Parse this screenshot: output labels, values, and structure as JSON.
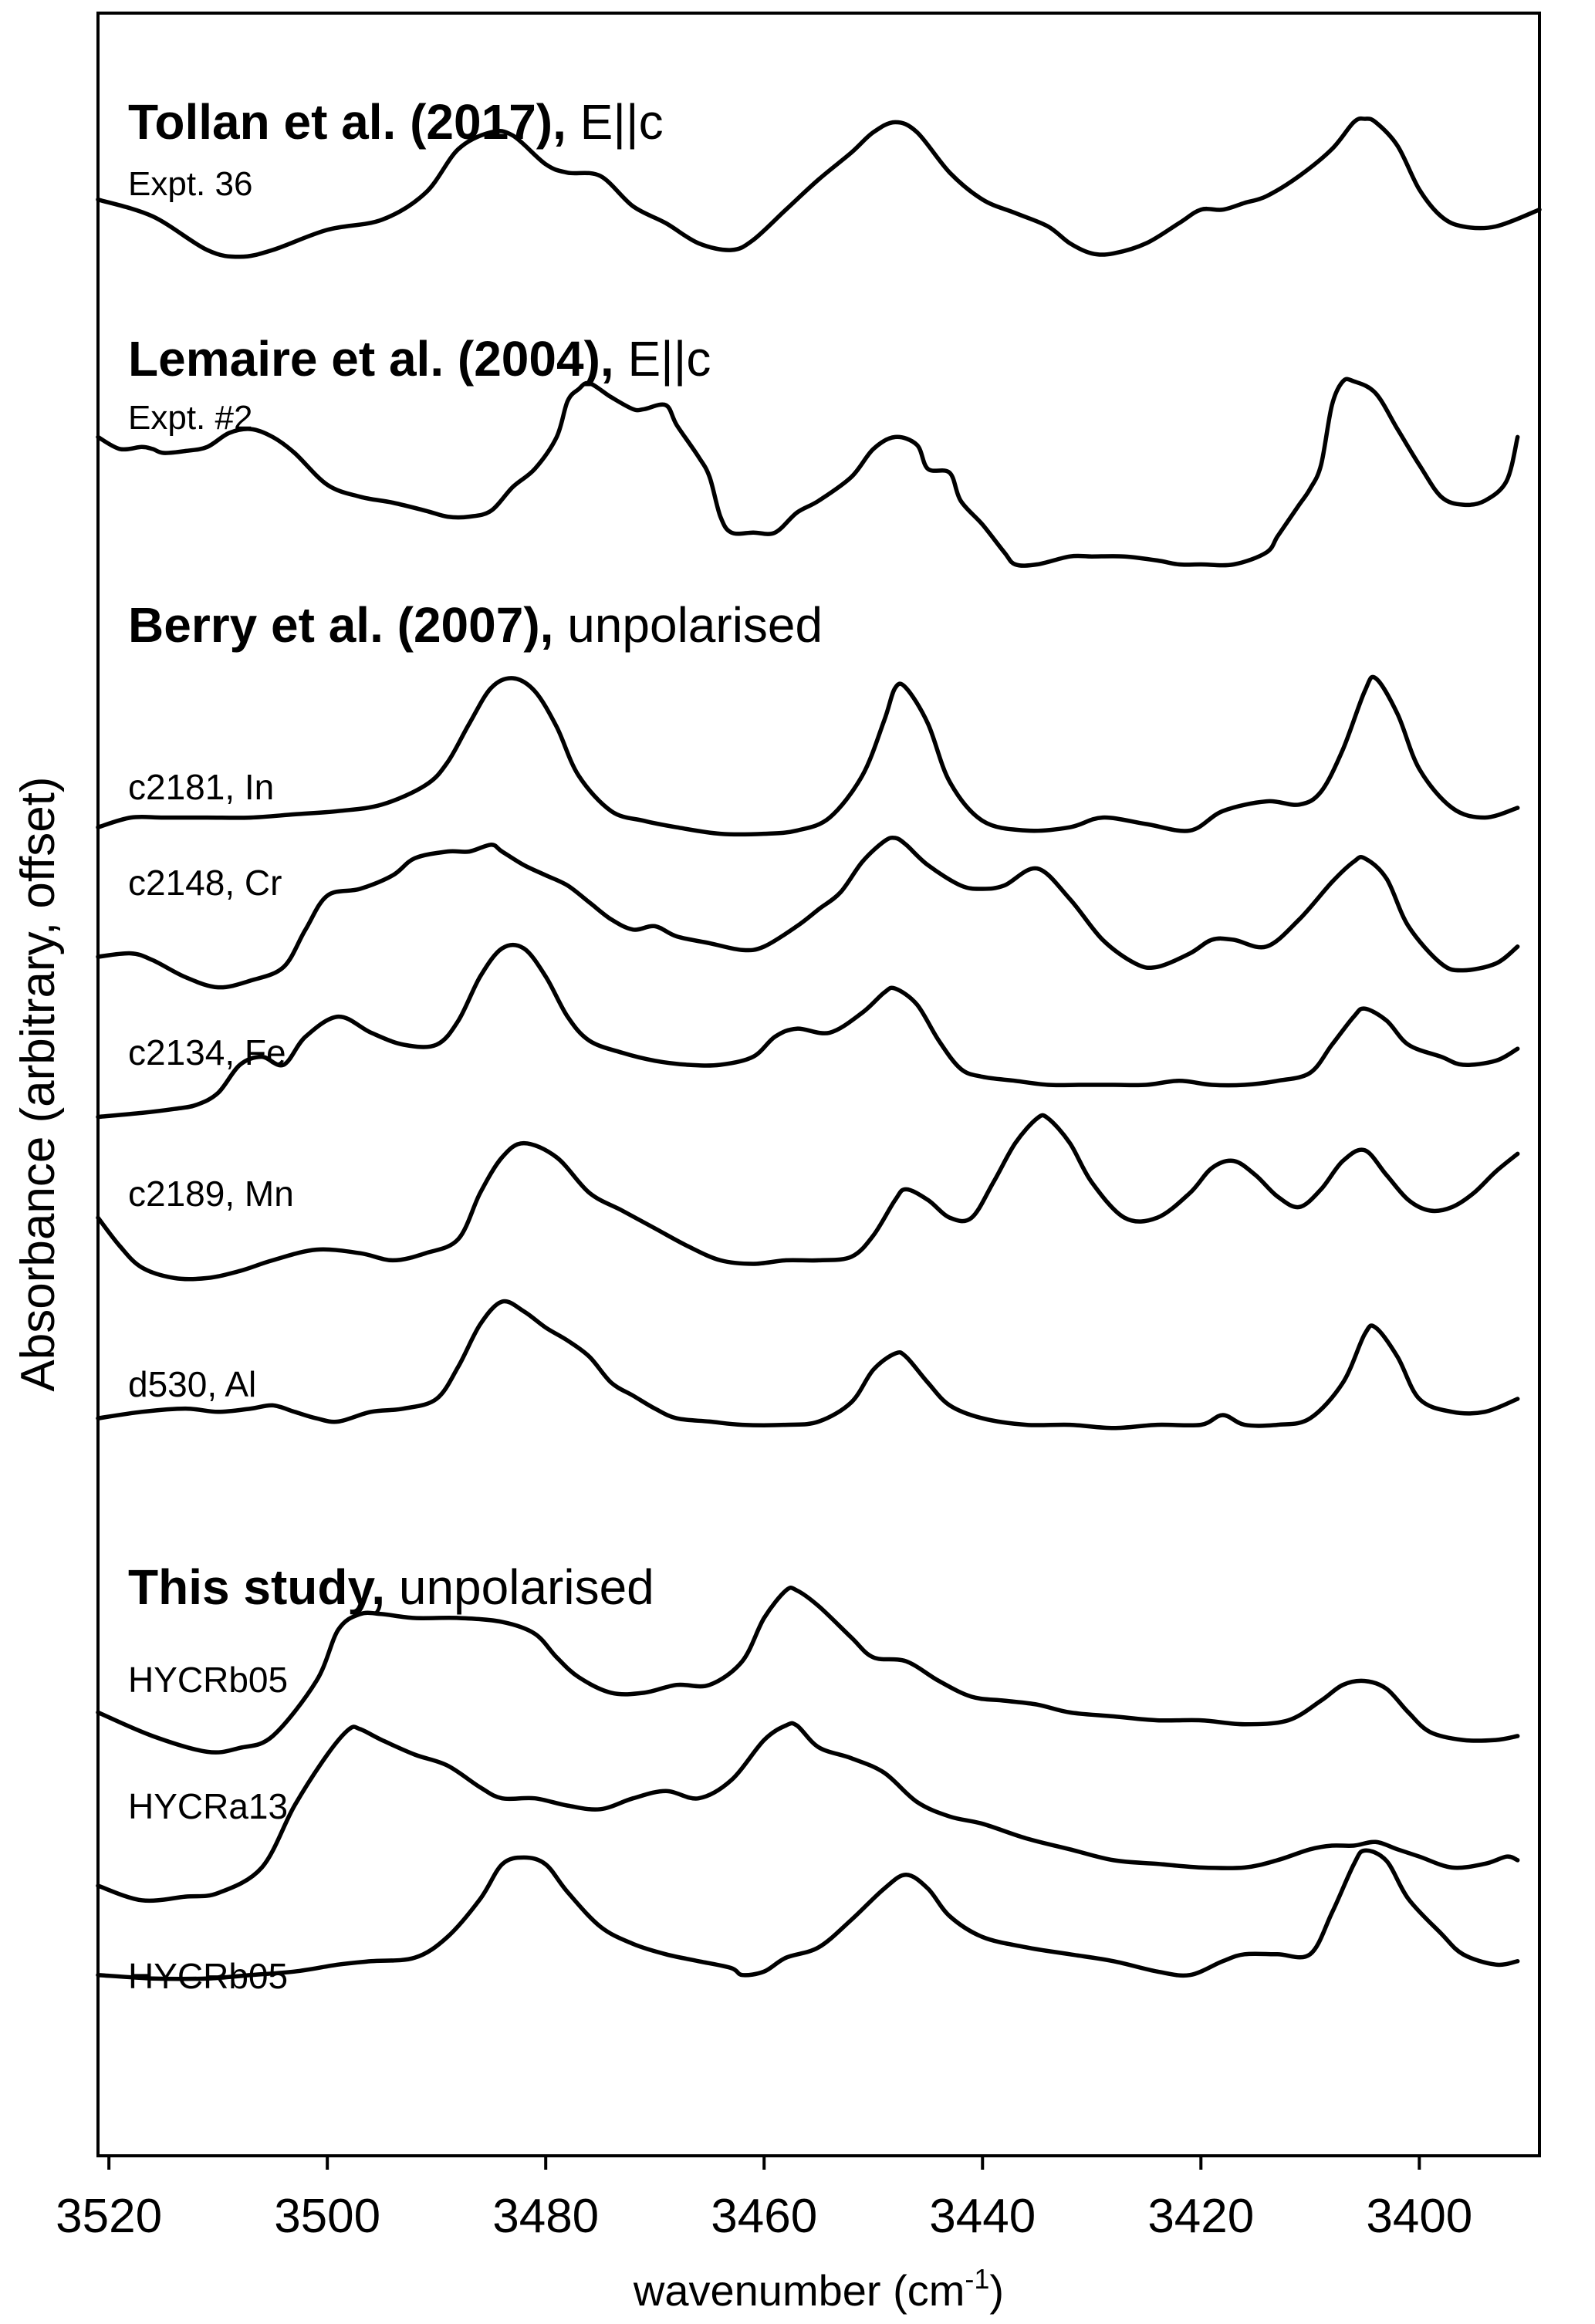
{
  "chart_data": {
    "type": "line",
    "xlabel": "wavenumber (cm",
    "xlabel_superscript": "-1",
    "xlabel_suffix": ")",
    "ylabel": "Absorbance (arbitrary, offset)",
    "xlim": [
      3521,
      3389
    ],
    "x_reversed": true,
    "y_ticks_shown": false,
    "grid": false,
    "x_ticks": [
      3520,
      3500,
      3480,
      3460,
      3440,
      3420,
      3400
    ],
    "groups": [
      {
        "title_bold": "Tollan et al. (2017),",
        "title_normal": "E||c",
        "subtitle": "Expt. 36"
      },
      {
        "title_bold": "Lemaire et al. (2004),",
        "title_normal": "E||c",
        "subtitle": "Expt. #2"
      },
      {
        "title_bold": "Berry et al. (2007),",
        "title_normal": "unpolarised"
      },
      {
        "title_bold": "This study,",
        "title_normal": "unpolarised"
      }
    ],
    "series": [
      {
        "name": "Expt. 36",
        "group": 0,
        "x": [
          3521,
          3516,
          3511,
          3508,
          3505,
          3500,
          3495,
          3491,
          3488,
          3485,
          3483,
          3480,
          3478,
          3475,
          3472,
          3469,
          3466,
          3463,
          3461,
          3458,
          3455,
          3452,
          3450,
          3448,
          3446,
          3443,
          3440,
          3437,
          3434,
          3432,
          3430,
          3428,
          3425,
          3422,
          3420,
          3418,
          3416,
          3414,
          3411,
          3408,
          3406,
          3405,
          3404,
          3402,
          3400,
          3398,
          3396,
          3393,
          3389
        ],
        "y": [
          0.52,
          0.42,
          0.22,
          0.18,
          0.22,
          0.34,
          0.4,
          0.56,
          0.82,
          0.92,
          0.9,
          0.73,
          0.68,
          0.66,
          0.48,
          0.38,
          0.26,
          0.22,
          0.28,
          0.46,
          0.64,
          0.8,
          0.92,
          0.98,
          0.92,
          0.68,
          0.52,
          0.44,
          0.36,
          0.26,
          0.2,
          0.2,
          0.26,
          0.38,
          0.46,
          0.46,
          0.5,
          0.54,
          0.66,
          0.82,
          0.98,
          1.0,
          0.98,
          0.84,
          0.58,
          0.42,
          0.36,
          0.36,
          0.46
        ]
      },
      {
        "name": "Expt. #2",
        "group": 1,
        "x": [
          3521,
          3519,
          3517,
          3516,
          3515,
          3513,
          3511,
          3509,
          3507,
          3505,
          3503,
          3500,
          3497,
          3494,
          3491,
          3489,
          3487,
          3485,
          3483,
          3481,
          3479,
          3478,
          3477,
          3476,
          3474,
          3472,
          3471,
          3469,
          3468,
          3466,
          3465,
          3464,
          3463,
          3461,
          3459,
          3457,
          3455,
          3452,
          3450,
          3448,
          3446,
          3445,
          3443,
          3442,
          3440,
          3438,
          3437,
          3435,
          3432,
          3430,
          3427,
          3424,
          3422,
          3420,
          3417,
          3414,
          3413,
          3412,
          3411,
          3410,
          3409,
          3408,
          3407,
          3406,
          3404,
          3402,
          3400,
          3398,
          3396,
          3394,
          3392,
          3391
        ],
        "y": [
          0.7,
          0.64,
          0.65,
          0.64,
          0.62,
          0.63,
          0.65,
          0.72,
          0.74,
          0.7,
          0.62,
          0.46,
          0.4,
          0.37,
          0.33,
          0.3,
          0.3,
          0.33,
          0.45,
          0.54,
          0.7,
          0.88,
          0.94,
          0.97,
          0.9,
          0.84,
          0.84,
          0.86,
          0.76,
          0.6,
          0.5,
          0.3,
          0.22,
          0.22,
          0.22,
          0.32,
          0.38,
          0.5,
          0.64,
          0.7,
          0.66,
          0.54,
          0.52,
          0.38,
          0.26,
          0.12,
          0.06,
          0.06,
          0.1,
          0.1,
          0.1,
          0.08,
          0.06,
          0.06,
          0.06,
          0.12,
          0.2,
          0.28,
          0.36,
          0.44,
          0.56,
          0.86,
          0.98,
          0.98,
          0.92,
          0.74,
          0.56,
          0.4,
          0.36,
          0.38,
          0.48,
          0.7
        ]
      },
      {
        "name": "c2181, In",
        "group": 2,
        "x": [
          3521,
          3518,
          3515,
          3511,
          3507,
          3503,
          3499,
          3495,
          3491,
          3489,
          3487,
          3485,
          3483,
          3481,
          3479,
          3477,
          3474,
          3471,
          3468,
          3464,
          3460,
          3457,
          3454,
          3451,
          3449,
          3448,
          3447,
          3445,
          3443,
          3440,
          3436,
          3432,
          3429,
          3425,
          3421,
          3418,
          3414,
          3411,
          3409,
          3407,
          3405,
          3404,
          3402,
          3400,
          3397,
          3394,
          3391
        ],
        "y": [
          0.08,
          0.14,
          0.14,
          0.14,
          0.14,
          0.16,
          0.18,
          0.22,
          0.34,
          0.48,
          0.72,
          0.94,
          1.0,
          0.92,
          0.7,
          0.4,
          0.18,
          0.12,
          0.08,
          0.04,
          0.04,
          0.06,
          0.14,
          0.4,
          0.74,
          0.94,
          0.94,
          0.72,
          0.36,
          0.12,
          0.06,
          0.08,
          0.14,
          0.1,
          0.06,
          0.18,
          0.24,
          0.22,
          0.3,
          0.56,
          0.92,
          1.0,
          0.78,
          0.44,
          0.2,
          0.14,
          0.2
        ]
      },
      {
        "name": "c2148, Cr",
        "group": 2,
        "x": [
          3521,
          3518,
          3516,
          3513,
          3510,
          3507,
          3504,
          3502,
          3500,
          3497,
          3494,
          3492,
          3489,
          3487,
          3485,
          3484,
          3482,
          3480,
          3478,
          3476,
          3474,
          3472,
          3470,
          3468,
          3465,
          3462,
          3460,
          3457,
          3455,
          3453,
          3451,
          3449,
          3448,
          3447,
          3445,
          3442,
          3440,
          3438,
          3435,
          3432,
          3429,
          3426,
          3424,
          3421,
          3419,
          3417,
          3414,
          3411,
          3408,
          3406,
          3405,
          3403,
          3401,
          3398,
          3396,
          3393,
          3391
        ],
        "y": [
          0.4,
          0.42,
          0.38,
          0.28,
          0.22,
          0.26,
          0.34,
          0.56,
          0.76,
          0.8,
          0.88,
          0.98,
          1.02,
          1.02,
          1.06,
          1.02,
          0.94,
          0.88,
          0.82,
          0.72,
          0.62,
          0.56,
          0.58,
          0.52,
          0.48,
          0.44,
          0.46,
          0.58,
          0.68,
          0.78,
          0.96,
          1.08,
          1.1,
          1.06,
          0.94,
          0.82,
          0.8,
          0.82,
          0.92,
          0.74,
          0.5,
          0.36,
          0.34,
          0.42,
          0.5,
          0.5,
          0.46,
          0.62,
          0.84,
          0.96,
          0.98,
          0.86,
          0.58,
          0.36,
          0.32,
          0.36,
          0.46
        ]
      },
      {
        "name": "c2134, Fe",
        "group": 2,
        "x": [
          3521,
          3517,
          3514,
          3512,
          3510,
          3508,
          3506,
          3504,
          3502,
          3499,
          3496,
          3493,
          3490,
          3488,
          3486,
          3484,
          3482,
          3480,
          3478,
          3476,
          3473,
          3470,
          3467,
          3464,
          3461,
          3459,
          3457,
          3454,
          3451,
          3449,
          3448,
          3446,
          3444,
          3442,
          3440,
          3437,
          3434,
          3431,
          3428,
          3425,
          3422,
          3419,
          3416,
          3413,
          3410,
          3408,
          3406,
          3405,
          3403,
          3401,
          3398,
          3396,
          3393,
          3391
        ],
        "y": [
          0.14,
          0.16,
          0.18,
          0.2,
          0.26,
          0.4,
          0.44,
          0.4,
          0.54,
          0.64,
          0.56,
          0.5,
          0.5,
          0.62,
          0.84,
          0.98,
          0.98,
          0.84,
          0.64,
          0.52,
          0.46,
          0.42,
          0.4,
          0.4,
          0.44,
          0.54,
          0.58,
          0.56,
          0.66,
          0.76,
          0.78,
          0.7,
          0.52,
          0.38,
          0.34,
          0.32,
          0.3,
          0.3,
          0.3,
          0.3,
          0.32,
          0.3,
          0.3,
          0.32,
          0.36,
          0.5,
          0.64,
          0.68,
          0.62,
          0.5,
          0.44,
          0.4,
          0.42,
          0.48
        ]
      },
      {
        "name": "c2189, Mn",
        "group": 2,
        "x": [
          3521,
          3519,
          3517,
          3514,
          3511,
          3508,
          3505,
          3501,
          3497,
          3494,
          3491,
          3488,
          3486,
          3484,
          3482,
          3479,
          3476,
          3473,
          3470,
          3467,
          3464,
          3461,
          3458,
          3455,
          3452,
          3450,
          3448,
          3447,
          3445,
          3443,
          3441,
          3439,
          3437,
          3435,
          3434,
          3432,
          3430,
          3427,
          3424,
          3421,
          3419,
          3417,
          3415,
          3413,
          3411,
          3409,
          3407,
          3405,
          3403,
          3401,
          3399,
          3397,
          3395,
          3393,
          3391
        ],
        "y": [
          0.46,
          0.3,
          0.18,
          0.12,
          0.12,
          0.16,
          0.22,
          0.28,
          0.26,
          0.22,
          0.26,
          0.34,
          0.6,
          0.8,
          0.88,
          0.8,
          0.6,
          0.5,
          0.4,
          0.3,
          0.22,
          0.2,
          0.22,
          0.22,
          0.24,
          0.36,
          0.56,
          0.62,
          0.56,
          0.46,
          0.46,
          0.66,
          0.88,
          1.02,
          1.02,
          0.88,
          0.66,
          0.46,
          0.46,
          0.6,
          0.74,
          0.78,
          0.7,
          0.58,
          0.52,
          0.62,
          0.78,
          0.84,
          0.7,
          0.56,
          0.5,
          0.52,
          0.6,
          0.72,
          0.82
        ]
      },
      {
        "name": "d530, Al",
        "group": 2,
        "x": [
          3521,
          3517,
          3513,
          3510,
          3507,
          3505,
          3503,
          3501,
          3499,
          3496,
          3493,
          3490,
          3488,
          3486,
          3484,
          3482,
          3480,
          3478,
          3476,
          3474,
          3472,
          3470,
          3468,
          3465,
          3462,
          3458,
          3455,
          3452,
          3450,
          3448,
          3447,
          3445,
          3443,
          3440,
          3436,
          3432,
          3428,
          3424,
          3420,
          3418,
          3416,
          3413,
          3410,
          3407,
          3405,
          3404,
          3402,
          3400,
          3397,
          3394,
          3391
        ],
        "y": [
          0.18,
          0.22,
          0.24,
          0.22,
          0.24,
          0.26,
          0.22,
          0.18,
          0.16,
          0.22,
          0.24,
          0.3,
          0.5,
          0.76,
          0.9,
          0.84,
          0.74,
          0.66,
          0.56,
          0.4,
          0.32,
          0.24,
          0.18,
          0.16,
          0.14,
          0.14,
          0.16,
          0.28,
          0.48,
          0.58,
          0.56,
          0.4,
          0.26,
          0.18,
          0.14,
          0.14,
          0.12,
          0.14,
          0.14,
          0.2,
          0.14,
          0.14,
          0.18,
          0.4,
          0.7,
          0.74,
          0.56,
          0.3,
          0.22,
          0.22,
          0.3
        ]
      },
      {
        "name": "HYCRb05",
        "group": 3,
        "x": [
          3521,
          3516,
          3511,
          3508,
          3505,
          3501,
          3499,
          3497,
          3495,
          3492,
          3488,
          3484,
          3481,
          3479,
          3477,
          3474,
          3471,
          3468,
          3465,
          3462,
          3460,
          3458,
          3457,
          3455,
          3452,
          3450,
          3447,
          3444,
          3441,
          3438,
          3435,
          3432,
          3428,
          3424,
          3420,
          3416,
          3412,
          3409,
          3407,
          3405,
          3403,
          3401,
          3399,
          3396,
          3393,
          3391
        ],
        "y": [
          0.32,
          0.2,
          0.12,
          0.14,
          0.2,
          0.48,
          0.74,
          0.82,
          0.82,
          0.8,
          0.8,
          0.78,
          0.72,
          0.6,
          0.5,
          0.42,
          0.42,
          0.46,
          0.46,
          0.58,
          0.8,
          0.94,
          0.94,
          0.86,
          0.7,
          0.6,
          0.58,
          0.48,
          0.4,
          0.38,
          0.36,
          0.32,
          0.3,
          0.28,
          0.28,
          0.26,
          0.28,
          0.38,
          0.46,
          0.48,
          0.44,
          0.32,
          0.22,
          0.18,
          0.18,
          0.2
        ]
      },
      {
        "name": "HYCRa13",
        "group": 3,
        "x": [
          3521,
          3517,
          3513,
          3510,
          3506,
          3503,
          3500,
          3498,
          3497,
          3495,
          3492,
          3489,
          3486,
          3484,
          3481,
          3478,
          3475,
          3472,
          3469,
          3466,
          3463,
          3460,
          3458,
          3457,
          3455,
          3452,
          3449,
          3446,
          3443,
          3440,
          3436,
          3432,
          3428,
          3424,
          3420,
          3416,
          3413,
          3410,
          3408,
          3406,
          3404,
          3402,
          3400,
          3397,
          3394,
          3392,
          3391
        ],
        "y": [
          0.14,
          0.06,
          0.08,
          0.1,
          0.24,
          0.58,
          0.86,
          1.0,
          1.0,
          0.94,
          0.86,
          0.8,
          0.68,
          0.62,
          0.62,
          0.58,
          0.56,
          0.62,
          0.66,
          0.62,
          0.72,
          0.94,
          1.02,
          1.02,
          0.9,
          0.84,
          0.76,
          0.6,
          0.52,
          0.48,
          0.4,
          0.34,
          0.28,
          0.26,
          0.24,
          0.24,
          0.28,
          0.34,
          0.36,
          0.36,
          0.38,
          0.34,
          0.3,
          0.24,
          0.26,
          0.3,
          0.28
        ]
      },
      {
        "name": "HYCRb05",
        "group": 3,
        "x": [
          3521,
          3516,
          3511,
          3507,
          3503,
          3499,
          3496,
          3492,
          3489,
          3486,
          3484,
          3482,
          3480,
          3478,
          3475,
          3472,
          3469,
          3466,
          3463,
          3462,
          3460,
          3458,
          3455,
          3452,
          3449,
          3447,
          3445,
          3443,
          3440,
          3436,
          3432,
          3428,
          3424,
          3421,
          3418,
          3416,
          3413,
          3410,
          3408,
          3406,
          3405,
          3403,
          3401,
          3398,
          3396,
          3393,
          3391
        ],
        "y": [
          0.18,
          0.16,
          0.16,
          0.18,
          0.2,
          0.24,
          0.26,
          0.28,
          0.4,
          0.62,
          0.82,
          0.86,
          0.82,
          0.66,
          0.46,
          0.36,
          0.3,
          0.26,
          0.22,
          0.18,
          0.2,
          0.28,
          0.34,
          0.5,
          0.68,
          0.76,
          0.68,
          0.52,
          0.4,
          0.34,
          0.3,
          0.26,
          0.2,
          0.18,
          0.26,
          0.3,
          0.3,
          0.3,
          0.54,
          0.82,
          0.9,
          0.84,
          0.62,
          0.42,
          0.3,
          0.24,
          0.26
        ]
      }
    ]
  }
}
